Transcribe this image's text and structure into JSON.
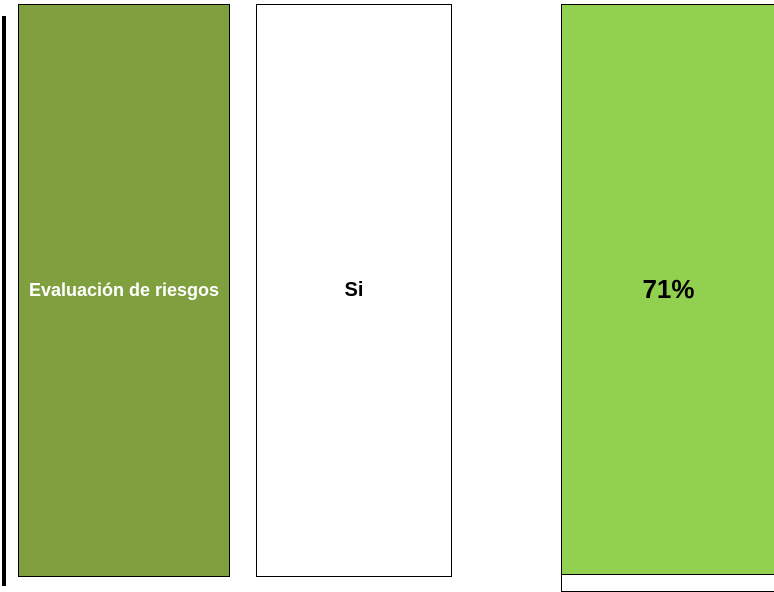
{
  "row": {
    "category": "Evaluación de riesgos",
    "answer": "Si",
    "percentage": "71%"
  },
  "colors": {
    "category_fill": "#80a040",
    "percentage_fill": "#92d050",
    "border": "#000000"
  }
}
